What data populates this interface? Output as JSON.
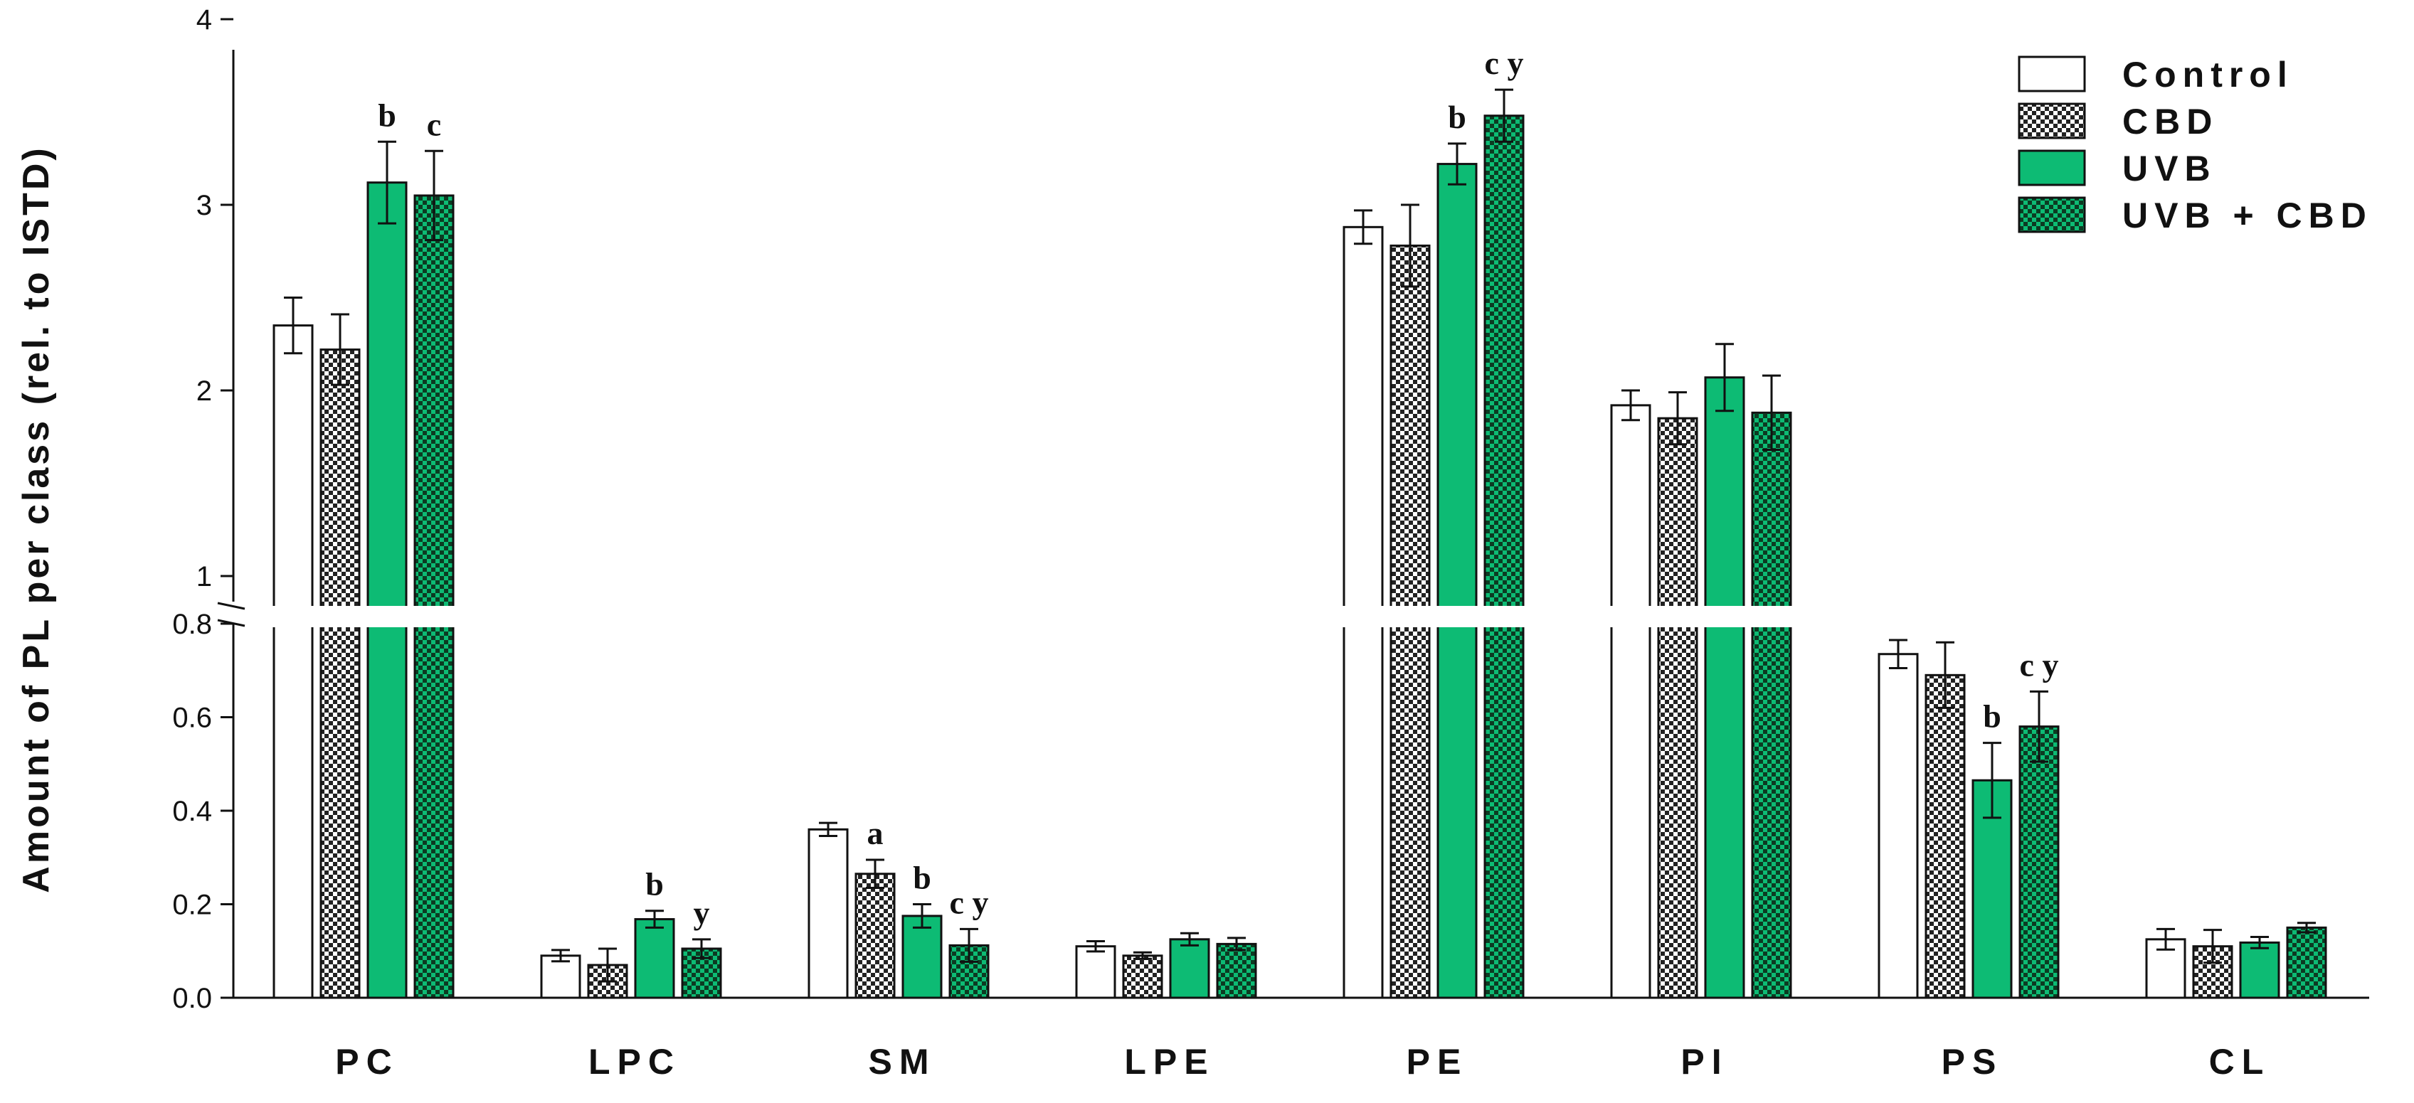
{
  "chart_data": {
    "type": "bar",
    "title": "",
    "xlabel": "",
    "ylabel": "Amount of PL per class (rel. to ISTD)",
    "axis_break": {
      "lower_range": [
        0,
        0.8
      ],
      "upper_range": [
        0.8,
        4
      ]
    },
    "ylim": [
      0,
      4
    ],
    "yticks_lower": [
      "0.0",
      "0.2",
      "0.4",
      "0.6",
      "0.8"
    ],
    "yticks_upper": [
      "1",
      "2",
      "3",
      "4"
    ],
    "categories": [
      "PC",
      "LPC",
      "SM",
      "LPE",
      "PE",
      "PI",
      "PS",
      "CL"
    ],
    "legend_position": "top-right",
    "series": [
      {
        "name": "Control",
        "fill": "white",
        "color": "#ffffff",
        "values": [
          2.35,
          0.09,
          0.36,
          0.11,
          2.88,
          1.92,
          0.735,
          0.125
        ],
        "errors": [
          0.15,
          0.012,
          0.014,
          0.011,
          0.09,
          0.08,
          0.03,
          0.022
        ],
        "labels": [
          "",
          "",
          "",
          "",
          "",
          "",
          "",
          ""
        ]
      },
      {
        "name": "CBD",
        "fill": "checker",
        "color": "#999999",
        "values": [
          2.22,
          0.07,
          0.265,
          0.09,
          2.78,
          1.85,
          0.69,
          0.11
        ],
        "errors": [
          0.19,
          0.035,
          0.03,
          0.007,
          0.22,
          0.14,
          0.07,
          0.035
        ],
        "labels": [
          "",
          "",
          "a",
          "",
          "",
          "",
          "",
          ""
        ]
      },
      {
        "name": "UVB",
        "fill": "solid",
        "color": "#0dbb74",
        "values": [
          3.12,
          0.168,
          0.175,
          0.125,
          3.22,
          2.07,
          0.465,
          0.118
        ],
        "errors": [
          0.22,
          0.018,
          0.025,
          0.013,
          0.11,
          0.18,
          0.08,
          0.012
        ],
        "labels": [
          "b",
          "b",
          "b",
          "",
          "b",
          "",
          "b",
          ""
        ]
      },
      {
        "name": "UVB + CBD",
        "fill": "checker-green",
        "color": "#0dbb74",
        "values": [
          3.05,
          0.105,
          0.112,
          0.115,
          3.48,
          1.88,
          0.58,
          0.15
        ],
        "errors": [
          0.24,
          0.02,
          0.035,
          0.013,
          0.14,
          0.2,
          0.075,
          0.01
        ],
        "labels": [
          "c",
          "y",
          "c y",
          "",
          "c y",
          "",
          "c y",
          ""
        ]
      }
    ]
  }
}
